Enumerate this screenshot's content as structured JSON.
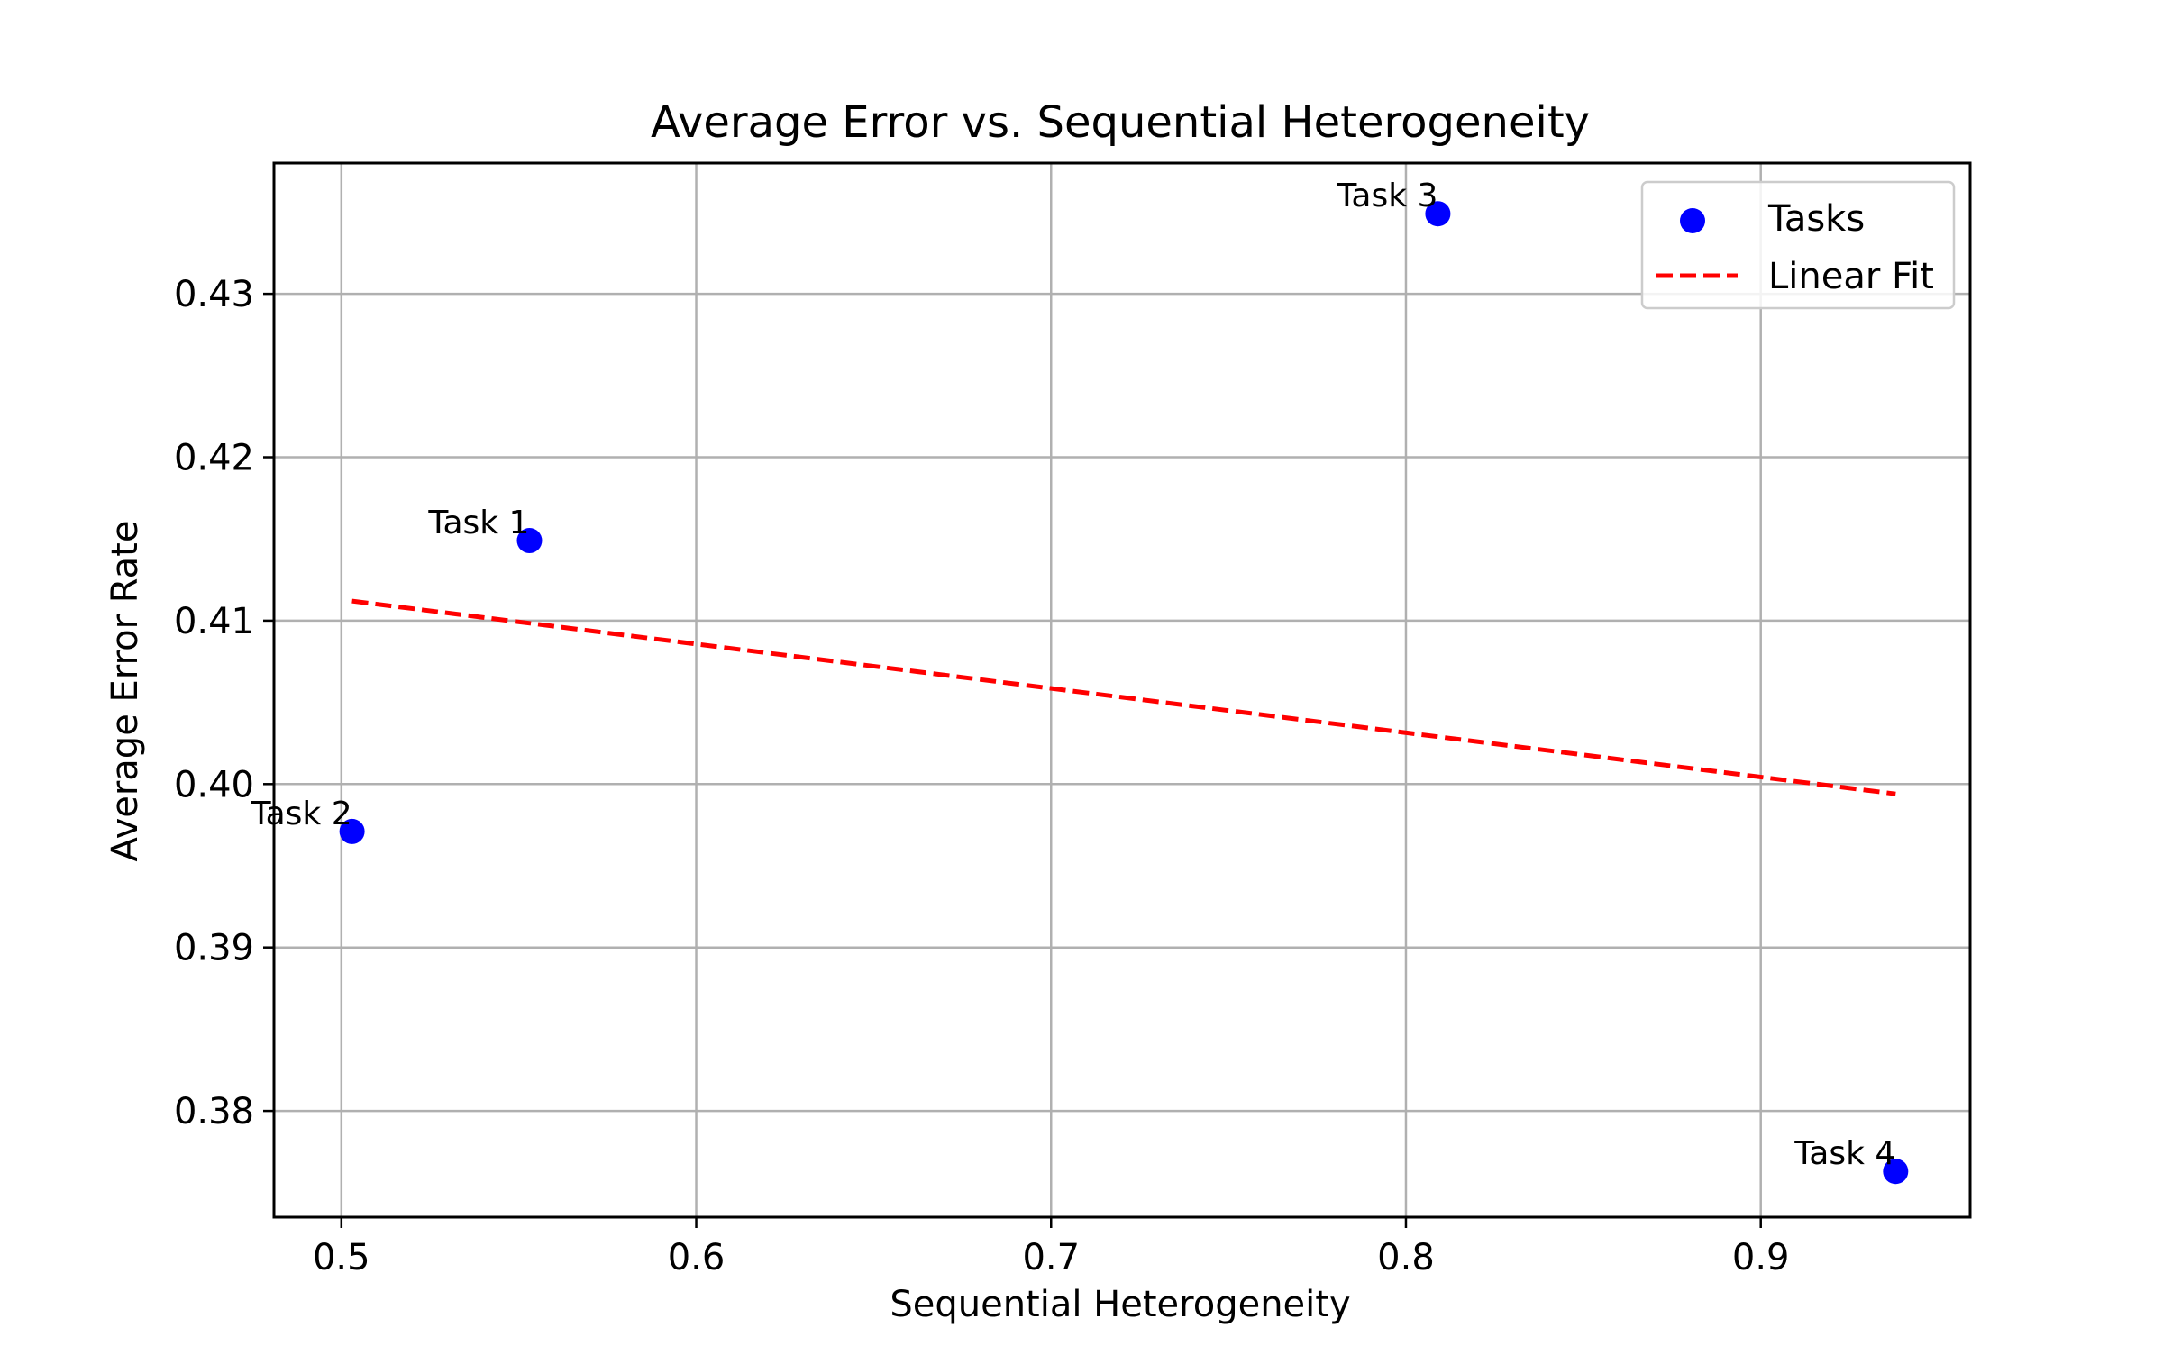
{
  "chart_data": {
    "type": "scatter",
    "title": "Average Error vs. Sequential Heterogeneity",
    "xlabel": "Sequential Heterogeneity",
    "ylabel": "Average Error Rate",
    "xlim": [
      0.481,
      0.959
    ],
    "ylim": [
      0.3735,
      0.438
    ],
    "xticks": [
      0.5,
      0.6,
      0.7,
      0.8,
      0.9
    ],
    "xtick_labels": [
      "0.5",
      "0.6",
      "0.7",
      "0.8",
      "0.9"
    ],
    "yticks": [
      0.38,
      0.39,
      0.4,
      0.41,
      0.42,
      0.43
    ],
    "ytick_labels": [
      "0.38",
      "0.39",
      "0.40",
      "0.41",
      "0.42",
      "0.43"
    ],
    "grid": true,
    "legend_position": "top-right",
    "series": [
      {
        "name": "Tasks",
        "kind": "scatter",
        "color": "#0000ff",
        "points": [
          {
            "label": "Task 1",
            "x": 0.553,
            "y": 0.4149
          },
          {
            "label": "Task 2",
            "x": 0.503,
            "y": 0.3971
          },
          {
            "label": "Task 3",
            "x": 0.809,
            "y": 0.4349
          },
          {
            "label": "Task 4",
            "x": 0.938,
            "y": 0.3763
          }
        ]
      },
      {
        "name": "Linear Fit",
        "kind": "line",
        "style": "dashed",
        "color": "#ff0000",
        "points": [
          {
            "x": 0.503,
            "y": 0.4112
          },
          {
            "x": 0.938,
            "y": 0.3994
          }
        ]
      }
    ]
  }
}
